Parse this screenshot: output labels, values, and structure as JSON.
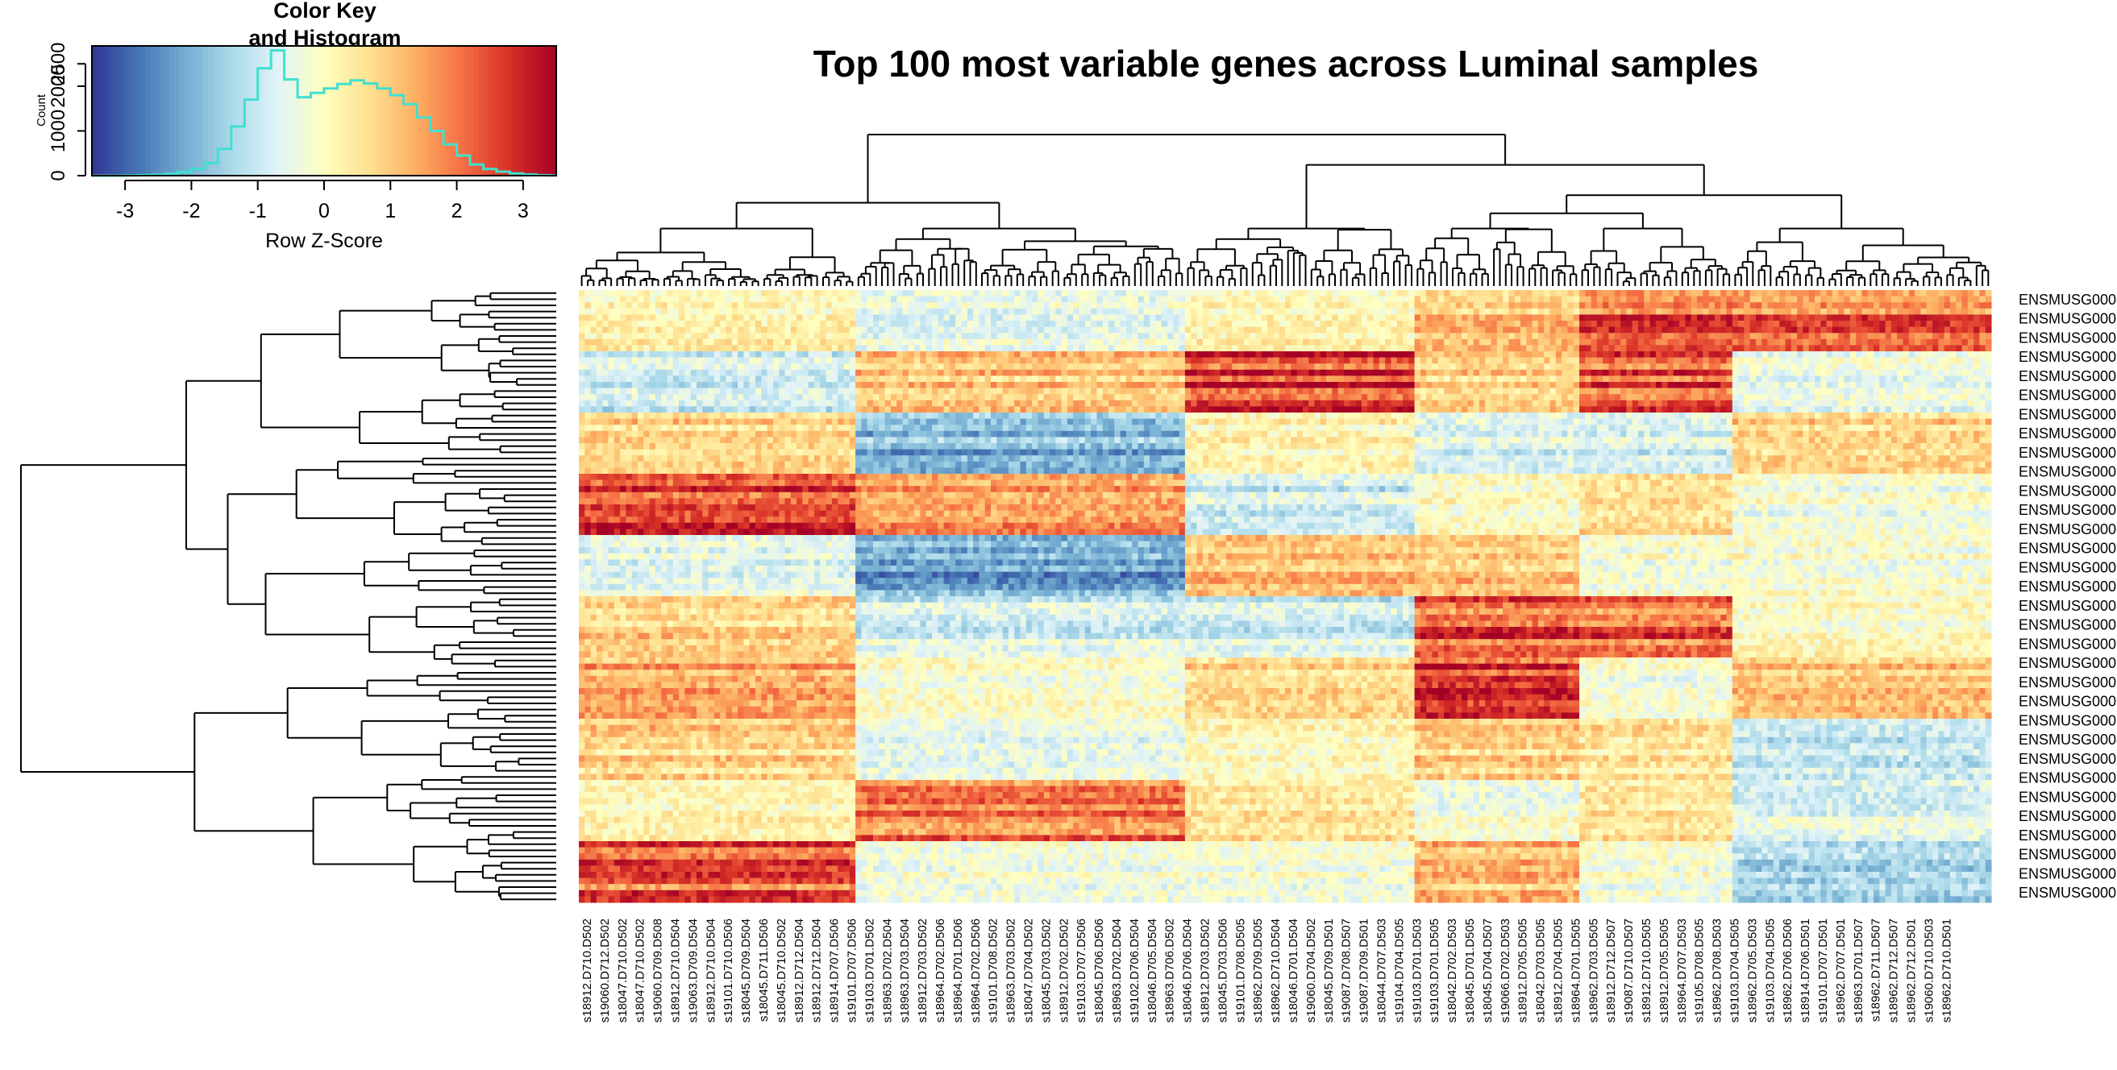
{
  "title": "Top 100 most variable genes across Luminal samples",
  "color_key": {
    "title_line1": "Color Key",
    "title_line2": "and Histogram",
    "xlabel": "Row Z-Score",
    "ylabel": "Count",
    "x_ticks": [
      -3,
      -2,
      -1,
      0,
      1,
      2,
      3
    ],
    "y_ticks": [
      0,
      1000,
      2000,
      2500
    ],
    "x_range": [
      -3.5,
      3.5
    ],
    "y_range": [
      0,
      2900
    ],
    "palette": [
      "#313695",
      "#4575b4",
      "#74add1",
      "#abd9e9",
      "#e0f3f8",
      "#ffffbf",
      "#fee090",
      "#fdae61",
      "#f46d43",
      "#d73027",
      "#a50026"
    ],
    "histogram_color": "#40e0d0",
    "histogram": [
      [
        -3.5,
        0
      ],
      [
        -3.0,
        5
      ],
      [
        -2.8,
        10
      ],
      [
        -2.6,
        20
      ],
      [
        -2.4,
        40
      ],
      [
        -2.2,
        80
      ],
      [
        -2.0,
        150
      ],
      [
        -1.8,
        280
      ],
      [
        -1.6,
        600
      ],
      [
        -1.4,
        1100
      ],
      [
        -1.2,
        1700
      ],
      [
        -1.0,
        2400
      ],
      [
        -0.8,
        2800
      ],
      [
        -0.6,
        2150
      ],
      [
        -0.4,
        1750
      ],
      [
        -0.2,
        1850
      ],
      [
        0.0,
        1950
      ],
      [
        0.2,
        2050
      ],
      [
        0.4,
        2130
      ],
      [
        0.6,
        2060
      ],
      [
        0.8,
        1950
      ],
      [
        1.0,
        1800
      ],
      [
        1.2,
        1600
      ],
      [
        1.4,
        1300
      ],
      [
        1.6,
        1000
      ],
      [
        1.8,
        700
      ],
      [
        2.0,
        450
      ],
      [
        2.2,
        250
      ],
      [
        2.4,
        150
      ],
      [
        2.6,
        90
      ],
      [
        2.8,
        50
      ],
      [
        3.0,
        25
      ],
      [
        3.2,
        10
      ],
      [
        3.4,
        5
      ]
    ]
  },
  "chart_data": {
    "type": "heatmap",
    "title": "Top 100 most variable genes across Luminal samples",
    "value_label": "Row Z-Score",
    "value_range": [
      -3.5,
      3.5
    ],
    "n_rows": 100,
    "n_cols": 240,
    "row_label_text": "ENSMUSG000",
    "row_labels_shown": 32,
    "col_labels": [
      "s18912.D710.D502",
      "s19060.D712.D502",
      "s18047.D710.D502",
      "s18047.D710.D502",
      "s19060.D709.D508",
      "s18912.D710.D504",
      "s19063.D709.D504",
      "s18912.D710.D504",
      "s19101.D710.D506",
      "s18045.D709.D504",
      "s18045.D711.D506",
      "s18045.D710.D502",
      "s18912.D712.D504",
      "s18912.D712.D504",
      "s18914.D707.D506",
      "s19101.D707.D506",
      "s19103.D701.D502",
      "s18963.D702.D504",
      "s18963.D703.D504",
      "s18912.D703.D502",
      "s18964.D702.D506",
      "s18964.D701.D506",
      "s18964.D702.D506",
      "s19101.D708.D502",
      "s18963.D703.D502",
      "s18047.D704.D502",
      "s18045.D703.D502",
      "s18912.D702.D502",
      "s19103.D707.D506",
      "s18045.D706.D506",
      "s18963.D702.D504",
      "s19102.D706.D504",
      "s18046.D705.D504",
      "s18963.D706.D502",
      "s18046.D706.D504",
      "s18912.D703.D502",
      "s18045.D703.D506",
      "s19101.D708.D505",
      "s18962.D709.D505",
      "s18962.D710.D504",
      "s18046.D701.D504",
      "s19060.D704.D502",
      "s18045.D709.D501",
      "s19087.D708.D507",
      "s19087.D709.D501",
      "s18044.D707.D503",
      "s19104.D704.D505",
      "s19103.D701.D503",
      "s19103.D701.D505",
      "s18042.D702.D503",
      "s18045.D701.D505",
      "s18045.D704.D507",
      "s19066.D702.D503",
      "s18912.D705.D505",
      "s18042.D703.D505",
      "s18912.D704.D505",
      "s18964.D701.D505",
      "s18962.D703.D505",
      "s18912.D712.D507",
      "s19087.D710.D507",
      "s18912.D710.D505",
      "s18912.D705.D505",
      "s18964.D707.D503",
      "s19105.D708.D505",
      "s18962.D708.D503",
      "s19103.D704.D505",
      "s18962.D705.D503",
      "s19103.D704.D505",
      "s18962.D706.D506",
      "s18914.D706.D501",
      "s19101.D707.D501",
      "s18962.D707.D501",
      "s18963.D701.D507",
      "s18962.D711.D507",
      "s18962.D712.D507",
      "s18962.D712.D501",
      "s19060.D710.D503",
      "s18962.D710.D501"
    ],
    "clusters": [
      {
        "cols": [
          0,
          46
        ]
      },
      {
        "cols": [
          47,
          102
        ]
      },
      {
        "cols": [
          103,
          141
        ]
      },
      {
        "cols": [
          142,
          169
        ]
      },
      {
        "cols": [
          170,
          195
        ]
      },
      {
        "cols": [
          196,
          239
        ]
      }
    ],
    "legend_position": "top-left"
  }
}
